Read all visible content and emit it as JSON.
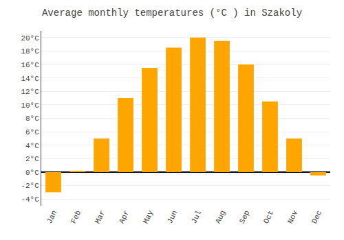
{
  "chart_data": {
    "type": "bar",
    "title": "Average monthly temperatures (°C ) in Szakoly",
    "categories": [
      "Jan",
      "Feb",
      "Mar",
      "Apr",
      "May",
      "Jun",
      "Jul",
      "Aug",
      "Sep",
      "Oct",
      "Nov",
      "Dec"
    ],
    "values": [
      -3.0,
      0.1,
      5.0,
      11.0,
      15.5,
      18.5,
      20.0,
      19.5,
      16.0,
      10.5,
      5.0,
      -0.5
    ],
    "color": "#FFA500",
    "ylim": [
      -5,
      21
    ],
    "yticks": [
      {
        "value": -4,
        "label": "-4°C"
      },
      {
        "value": -2,
        "label": "-2°C"
      },
      {
        "value": 0,
        "label": "0°C"
      },
      {
        "value": 2,
        "label": "2°C"
      },
      {
        "value": 4,
        "label": "4°C"
      },
      {
        "value": 6,
        "label": "6°C"
      },
      {
        "value": 8,
        "label": "8°C"
      },
      {
        "value": 10,
        "label": "10°C"
      },
      {
        "value": 12,
        "label": "12°C"
      },
      {
        "value": 14,
        "label": "14°C"
      },
      {
        "value": 16,
        "label": "16°C"
      },
      {
        "value": 18,
        "label": "18°C"
      },
      {
        "value": 20,
        "label": "20°C"
      }
    ],
    "grid": true
  }
}
